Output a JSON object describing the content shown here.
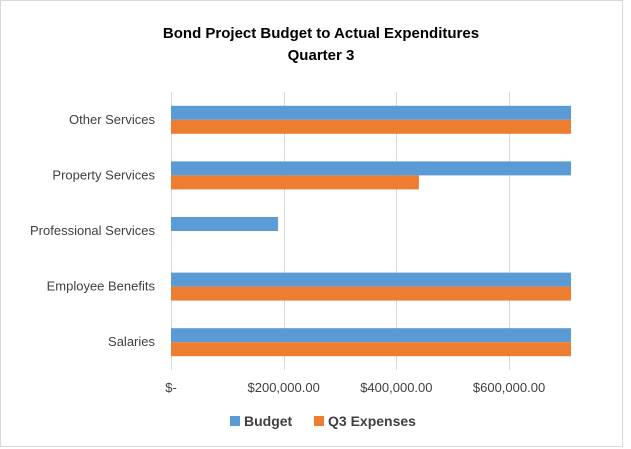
{
  "chart_data": {
    "type": "bar",
    "orientation": "horizontal",
    "title": "Bond Project Budget to Actual Expenditures",
    "subtitle": "Quarter 3",
    "categories": [
      "Salaries",
      "Employee Benefits",
      "Professional Services",
      "Property Services",
      "Other Services"
    ],
    "series": [
      {
        "name": "Budget",
        "color": "#5b9bd5",
        "values": [
          710000,
          710000,
          190000,
          710000,
          710000
        ]
      },
      {
        "name": "Q3 Expenses",
        "color": "#ed7d31",
        "values": [
          710000,
          710000,
          0,
          440000,
          710000
        ]
      }
    ],
    "x_ticks": [
      0,
      200000,
      400000,
      600000
    ],
    "x_tick_labels": [
      "$-",
      "$200,000.00",
      "$400,000.00",
      "$600,000.00"
    ],
    "xlim": [
      0,
      710000
    ],
    "grid": true,
    "legend_position": "bottom"
  }
}
